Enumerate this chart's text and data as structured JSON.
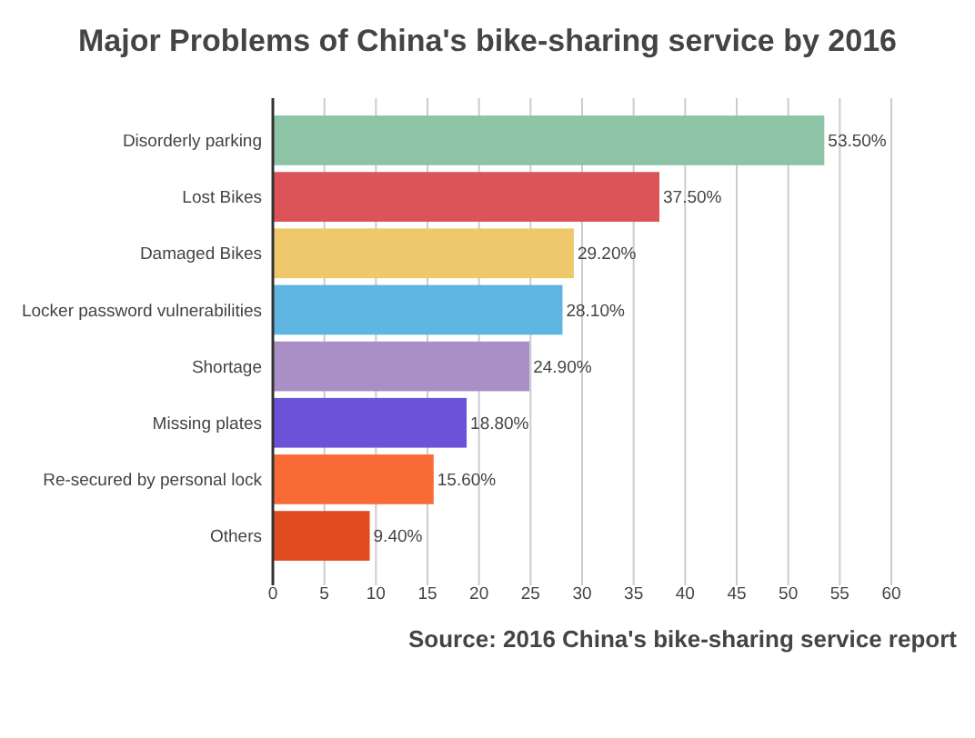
{
  "chart_data": {
    "type": "bar",
    "orientation": "horizontal",
    "title": "Major Problems of China's bike-sharing service by 2016",
    "categories": [
      "Disorderly parking",
      "Lost Bikes",
      "Damaged Bikes",
      "Locker password vulnerabilities",
      "Shortage",
      "Missing plates",
      "Re-secured by personal lock",
      "Others"
    ],
    "values": [
      53.5,
      37.5,
      29.2,
      28.1,
      24.9,
      18.8,
      15.6,
      9.4
    ],
    "colors": [
      "#8ec4a6",
      "#dc5358",
      "#eec86b",
      "#5eb5e2",
      "#a98fc6",
      "#6b52d8",
      "#f96a37",
      "#e04c1f"
    ],
    "value_labels": [
      "53.50%",
      "37.50%",
      "29.20%",
      "28.10%",
      "24.90%",
      "18.80%",
      "15.60%",
      "9.40%"
    ],
    "xlim": [
      0,
      60
    ],
    "xticks": [
      0,
      5,
      10,
      15,
      20,
      25,
      30,
      35,
      40,
      45,
      50,
      55,
      60
    ],
    "grid": "x",
    "annotations": [
      "Source: 2016 China's bike-sharing service report"
    ]
  }
}
